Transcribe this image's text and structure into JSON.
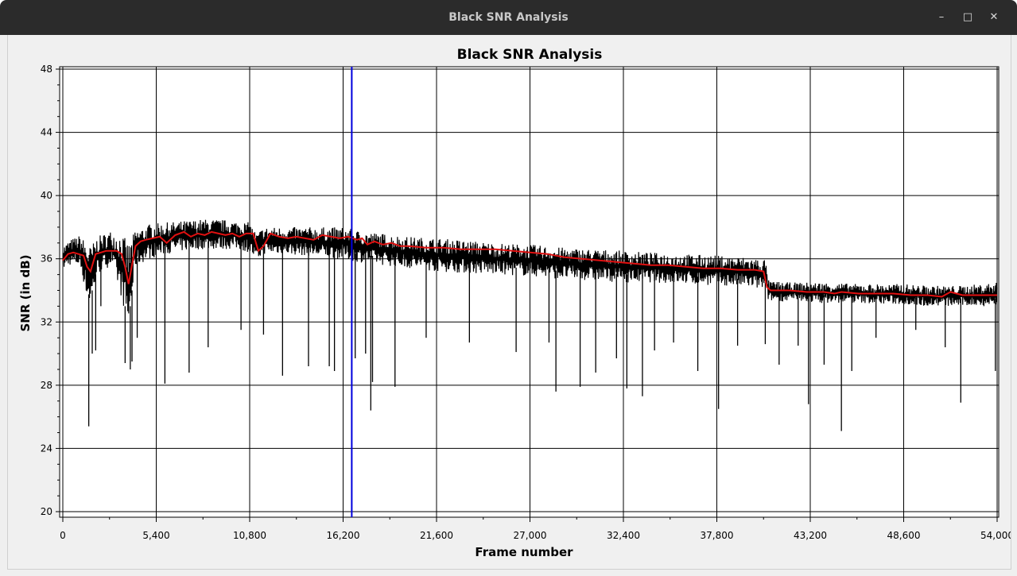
{
  "window": {
    "title": "Black SNR Analysis",
    "minimize_glyph": "–",
    "maximize_glyph": "□",
    "close_glyph": "✕"
  },
  "colors": {
    "raw_series": "#000000",
    "smoothed_series": "#e01010",
    "cursor_line": "#0000dd",
    "grid": "#000000",
    "plot_background": "#ffffff"
  },
  "chart_data": {
    "type": "line",
    "title": "Black SNR Analysis",
    "xlabel": "Frame number",
    "ylabel": "SNR (in dB)",
    "xlim": [
      0,
      54000
    ],
    "ylim": [
      20,
      48
    ],
    "x_ticks": [
      0,
      5400,
      10800,
      16200,
      21600,
      27000,
      32400,
      37800,
      43200,
      48600,
      54000
    ],
    "x_tick_labels": [
      "0",
      "5,400",
      "10,800",
      "16,200",
      "21,600",
      "27,000",
      "32,400",
      "37,800",
      "43,200",
      "48,600",
      "54,000"
    ],
    "y_ticks": [
      20,
      24,
      28,
      32,
      36,
      40,
      44,
      48
    ],
    "y_tick_labels": [
      "20",
      "24",
      "28",
      "32",
      "36",
      "40",
      "44",
      "48"
    ],
    "grid": true,
    "cursor_x": 16700,
    "series": [
      {
        "role": "raw",
        "band_x": [
          0,
          400,
          1000,
          1400,
          1600,
          2000,
          2800,
          3400,
          3800,
          4200,
          5000,
          6000,
          7000,
          8000,
          9000,
          10000,
          10800,
          11200,
          11600,
          12500,
          14000,
          15500,
          16200,
          17000,
          18500,
          20000,
          21600,
          23000,
          25000,
          27000,
          29000,
          31000,
          32400,
          34000,
          36000,
          38000,
          39500,
          40600,
          40800,
          42000,
          44000,
          46000,
          48600,
          50000,
          52000,
          54000
        ],
        "band_low": [
          35.3,
          35.6,
          35.5,
          33.5,
          33.0,
          35.0,
          35.6,
          33.5,
          31.5,
          35.5,
          36.0,
          36.3,
          36.5,
          36.6,
          36.6,
          36.6,
          36.4,
          35.8,
          36.3,
          36.3,
          36.2,
          36.0,
          36.0,
          35.8,
          35.6,
          35.4,
          35.2,
          35.1,
          35.0,
          34.9,
          34.7,
          34.6,
          34.5,
          34.5,
          34.4,
          34.3,
          34.2,
          34.0,
          33.3,
          33.3,
          33.2,
          33.2,
          33.1,
          33.0,
          33.0,
          33.0
        ],
        "band_high": [
          36.8,
          37.2,
          37.5,
          37.0,
          36.8,
          37.4,
          37.8,
          37.6,
          37.0,
          37.8,
          38.2,
          38.3,
          38.4,
          38.5,
          38.5,
          38.4,
          38.3,
          37.6,
          38.0,
          38.0,
          38.0,
          38.0,
          38.0,
          37.8,
          37.6,
          37.4,
          37.3,
          37.2,
          37.0,
          36.9,
          36.7,
          36.6,
          36.5,
          36.4,
          36.3,
          36.2,
          36.1,
          36.0,
          34.6,
          34.5,
          34.5,
          34.4,
          34.4,
          34.3,
          34.3,
          34.5
        ],
        "dips": [
          [
            1500,
            25.4
          ],
          [
            1700,
            30.0
          ],
          [
            1900,
            30.2
          ],
          [
            2200,
            33.0
          ],
          [
            3600,
            29.4
          ],
          [
            3900,
            29.0
          ],
          [
            4000,
            29.5
          ],
          [
            4300,
            31.0
          ],
          [
            5900,
            28.1
          ],
          [
            7300,
            28.8
          ],
          [
            8400,
            30.4
          ],
          [
            10300,
            31.5
          ],
          [
            11600,
            31.2
          ],
          [
            12700,
            28.6
          ],
          [
            14200,
            29.2
          ],
          [
            15400,
            29.2
          ],
          [
            15700,
            28.9
          ],
          [
            16900,
            29.7
          ],
          [
            17500,
            30.0
          ],
          [
            17900,
            28.2
          ],
          [
            17800,
            26.4
          ],
          [
            19200,
            27.9
          ],
          [
            21000,
            31.0
          ],
          [
            23500,
            30.7
          ],
          [
            26200,
            30.1
          ],
          [
            28100,
            30.7
          ],
          [
            28500,
            27.6
          ],
          [
            29900,
            27.9
          ],
          [
            30800,
            28.8
          ],
          [
            32000,
            29.7
          ],
          [
            32600,
            27.8
          ],
          [
            33500,
            27.3
          ],
          [
            34200,
            30.2
          ],
          [
            35300,
            30.7
          ],
          [
            36700,
            28.9
          ],
          [
            37900,
            26.5
          ],
          [
            39000,
            30.5
          ],
          [
            40600,
            30.6
          ],
          [
            41400,
            29.3
          ],
          [
            42500,
            30.5
          ],
          [
            43100,
            26.8
          ],
          [
            44000,
            29.3
          ],
          [
            45000,
            25.1
          ],
          [
            45600,
            28.9
          ],
          [
            47000,
            31.0
          ],
          [
            49300,
            31.5
          ],
          [
            51000,
            30.4
          ],
          [
            51900,
            26.9
          ],
          [
            53900,
            28.9
          ]
        ]
      },
      {
        "role": "smoothed",
        "x": [
          0,
          300,
          600,
          900,
          1200,
          1400,
          1600,
          1900,
          2200,
          2500,
          2800,
          3100,
          3400,
          3600,
          3800,
          4000,
          4200,
          4500,
          4800,
          5200,
          5600,
          6000,
          6500,
          7000,
          7400,
          7800,
          8200,
          8600,
          9000,
          9400,
          9800,
          10200,
          10600,
          11000,
          11300,
          11600,
          12000,
          12500,
          13000,
          13500,
          14000,
          14500,
          15000,
          15500,
          16000,
          16500,
          17000,
          17300,
          17600,
          18000,
          18500,
          19000,
          19500,
          20000,
          21000,
          22000,
          23000,
          24000,
          25000,
          26000,
          27000,
          28000,
          29000,
          30000,
          31000,
          32000,
          33000,
          34000,
          35000,
          36000,
          37000,
          38000,
          39000,
          40000,
          40500,
          40700,
          40900,
          42000,
          43000,
          44000,
          44600,
          45000,
          46000,
          47000,
          48000,
          49000,
          50000,
          50800,
          51300,
          52000,
          53000,
          54000
        ],
        "y": [
          35.9,
          36.3,
          36.4,
          36.3,
          36.2,
          35.5,
          35.2,
          36.3,
          36.4,
          36.5,
          36.5,
          36.5,
          36.3,
          35.5,
          34.4,
          35.6,
          36.8,
          37.1,
          37.2,
          37.3,
          37.4,
          37.0,
          37.5,
          37.7,
          37.4,
          37.6,
          37.5,
          37.7,
          37.6,
          37.5,
          37.6,
          37.4,
          37.6,
          37.6,
          36.5,
          36.8,
          37.6,
          37.4,
          37.3,
          37.4,
          37.3,
          37.2,
          37.5,
          37.4,
          37.3,
          37.4,
          37.2,
          37.3,
          36.9,
          37.1,
          36.9,
          37.0,
          36.8,
          36.8,
          36.7,
          36.7,
          36.6,
          36.6,
          36.6,
          36.5,
          36.4,
          36.3,
          36.1,
          36.0,
          35.9,
          35.8,
          35.7,
          35.6,
          35.6,
          35.5,
          35.4,
          35.4,
          35.3,
          35.3,
          35.2,
          34.2,
          34.0,
          34.0,
          33.9,
          33.9,
          33.8,
          33.9,
          33.8,
          33.8,
          33.8,
          33.7,
          33.7,
          33.6,
          33.9,
          33.7,
          33.7,
          33.7
        ]
      }
    ]
  }
}
